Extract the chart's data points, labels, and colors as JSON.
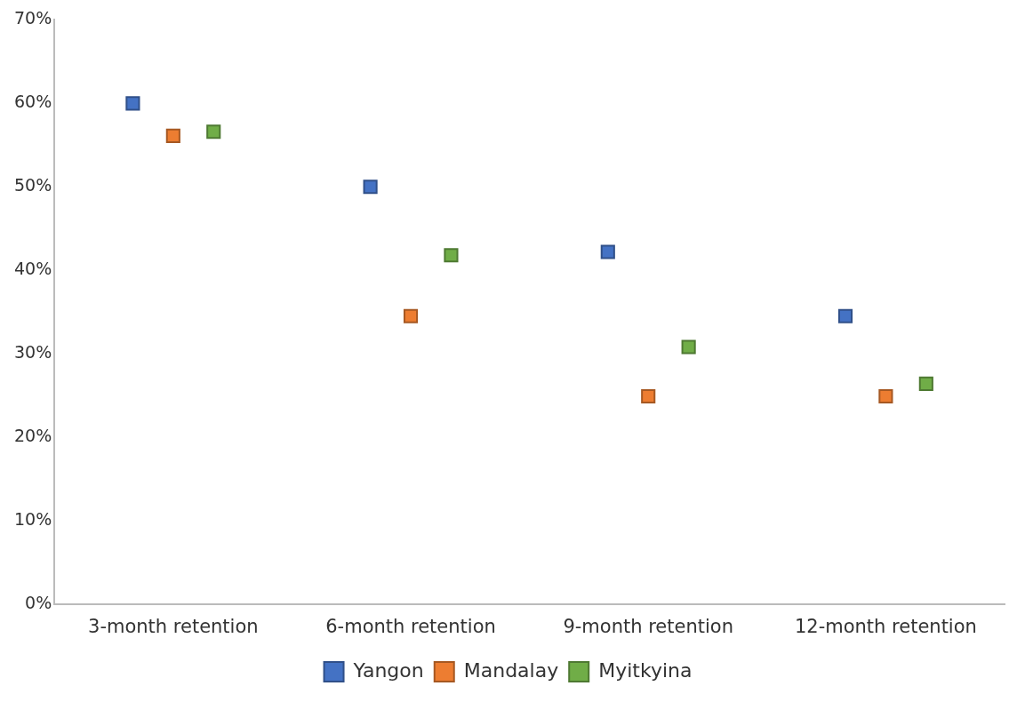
{
  "chart_data": {
    "type": "scatter",
    "categories": [
      "3-month retention",
      "6-month retention",
      "9-month retention",
      "12-month retention"
    ],
    "series": [
      {
        "name": "Yangon",
        "color": "#4472c4",
        "values": [
          60,
          50,
          42.2,
          34.5
        ]
      },
      {
        "name": "Mandalay",
        "color": "#ed7d31",
        "values": [
          56.1,
          34.5,
          24.9,
          24.9
        ]
      },
      {
        "name": "Myitkyina",
        "color": "#70ad47",
        "values": [
          56.6,
          41.8,
          30.8,
          26.4
        ]
      }
    ],
    "ylim": [
      0,
      70
    ],
    "yticks": [
      {
        "value": 0,
        "label": "0%"
      },
      {
        "value": 10,
        "label": "10%"
      },
      {
        "value": 20,
        "label": "20%"
      },
      {
        "value": 30,
        "label": "30%"
      },
      {
        "value": 40,
        "label": "40%"
      },
      {
        "value": 50,
        "label": "50%"
      },
      {
        "value": 60,
        "label": "60%"
      },
      {
        "value": 70,
        "label": "70%"
      }
    ],
    "marker": "square",
    "grid": false,
    "legend": "bottom"
  }
}
